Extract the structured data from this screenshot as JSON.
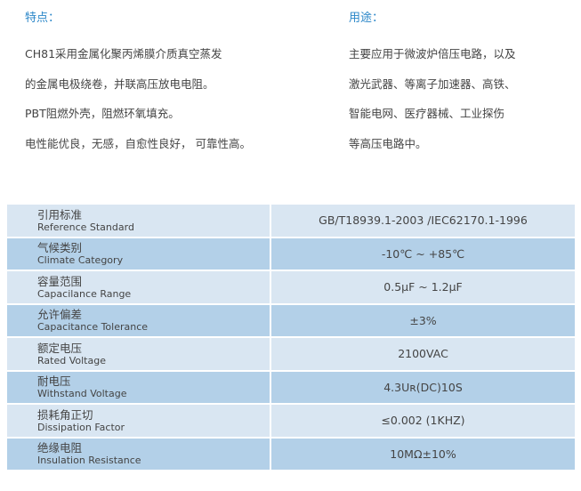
{
  "features": {
    "heading": "特点：",
    "lines": [
      "CH81采用金属化聚丙烯膜介质真空蒸发",
      "的金属电极绕卷，并联高压放电电阻。",
      "PBT阻燃外壳，阻燃环氧填充。",
      "电性能优良，无感，自愈性良好， 可靠性高。"
    ]
  },
  "applications": {
    "heading": "用途：",
    "lines": [
      "主要应用于微波炉倍压电路，以及",
      "激光武器、等离子加速器、高铁、",
      "智能电网、医疗器械、工业探伤",
      "等高压电路中。"
    ]
  },
  "specs": [
    {
      "zh": "引用标准",
      "en": "Reference Standard",
      "value": "GB/T18939.1-2003 /IEC62170.1-1996"
    },
    {
      "zh": "气候类别",
      "en": "Climate Category",
      "value": "-10℃ ~ +85℃"
    },
    {
      "zh": "容量范围",
      "en": "Capacilance Range",
      "value": "0.5μF ~ 1.2μF"
    },
    {
      "zh": "允许偏差",
      "en": "Capacitance Tolerance",
      "value": "±3%"
    },
    {
      "zh": "额定电压",
      "en": "Rated Voltage",
      "value": "2100VAC"
    },
    {
      "zh": "耐电压",
      "en": "Withstand Voltage",
      "value": "4.3Uʀ(DC)10S"
    },
    {
      "zh": "损耗角正切",
      "en": "Dissipation Factor",
      "value": "≤0.002 (1KHZ)"
    },
    {
      "zh": "绝缘电阻",
      "en": "Insulation Resistance",
      "value": "10MΩ±10%"
    }
  ],
  "colors": {
    "heading": "#2a86c8",
    "row_light": "#d9e6f2",
    "row_dark": "#b3d0e8"
  }
}
